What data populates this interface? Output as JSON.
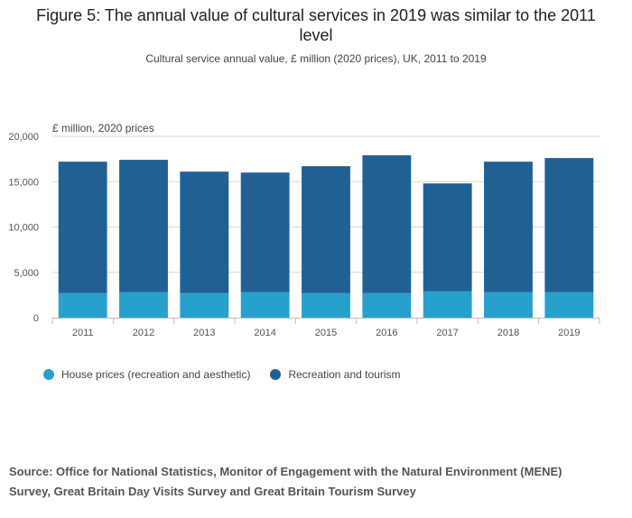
{
  "header": {
    "title": "Figure 5: The annual value of cultural services in 2019 was similar to the 2011 level",
    "subtitle": "Cultural service annual value, £ million (2020 prices), UK, 2011 to 2019"
  },
  "chart_data": {
    "type": "bar",
    "stacked": true,
    "title": "Figure 5: The annual value of cultural services in 2019 was similar to the 2011 level",
    "subtitle": "Cultural service annual value, £ million (2020 prices), UK, 2011 to 2019",
    "ylabel": "£ million, 2020 prices",
    "xlabel": "",
    "ylim": [
      0,
      20000
    ],
    "yticks": [
      0,
      5000,
      10000,
      15000,
      20000
    ],
    "ytick_labels": [
      "0",
      "5,000",
      "10,000",
      "15,000",
      "20,000"
    ],
    "grid": "horizontal",
    "legend_position": "bottom-left",
    "categories": [
      "2011",
      "2012",
      "2013",
      "2014",
      "2015",
      "2016",
      "2017",
      "2018",
      "2019"
    ],
    "series": [
      {
        "name": "House prices (recreation and aesthetic)",
        "color": "#27a0cc",
        "values": [
          2700,
          2800,
          2700,
          2800,
          2700,
          2700,
          2900,
          2800,
          2800
        ]
      },
      {
        "name": "Recreation and tourism",
        "color": "#206095",
        "values": [
          14500,
          14600,
          13400,
          13200,
          14000,
          15200,
          11900,
          14400,
          14800
        ]
      }
    ]
  },
  "footer": {
    "source": "Source: Office for National Statistics, Monitor of Engagement with the Natural Environment (MENE) Survey, Great Britain Day Visits Survey and Great Britain Tourism Survey"
  }
}
